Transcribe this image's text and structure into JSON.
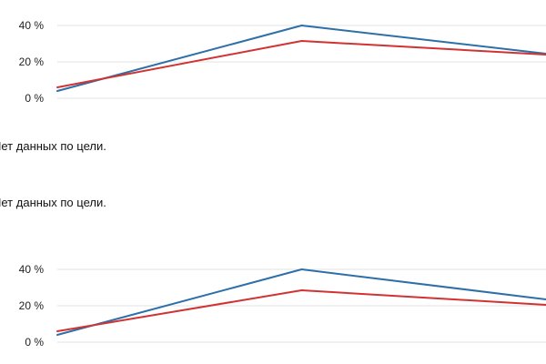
{
  "messages": [
    "Нет данных по цели.",
    "Нет данных по цели."
  ],
  "chart_data": [
    {
      "type": "line",
      "title": "",
      "xlabel": "",
      "ylabel": "",
      "ylim": [
        0,
        40
      ],
      "y_ticks": [
        "0 %",
        "20 %",
        "40 %"
      ],
      "grid": true,
      "x": [
        0,
        1,
        2
      ],
      "series": [
        {
          "color": "#2e6fa8",
          "values": [
            4,
            40,
            24.5
          ]
        },
        {
          "color": "#d13232",
          "values": [
            6,
            31.5,
            24
          ]
        }
      ]
    },
    {
      "type": "line",
      "title": "",
      "xlabel": "",
      "ylabel": "",
      "ylim": [
        0,
        40
      ],
      "y_ticks": [
        "0 %",
        "20 %",
        "40 %"
      ],
      "grid": true,
      "x": [
        0,
        1,
        2
      ],
      "series": [
        {
          "color": "#2e6fa8",
          "values": [
            4,
            40,
            23.5
          ]
        },
        {
          "color": "#d13232",
          "values": [
            6,
            28.5,
            20.5
          ]
        }
      ]
    }
  ]
}
